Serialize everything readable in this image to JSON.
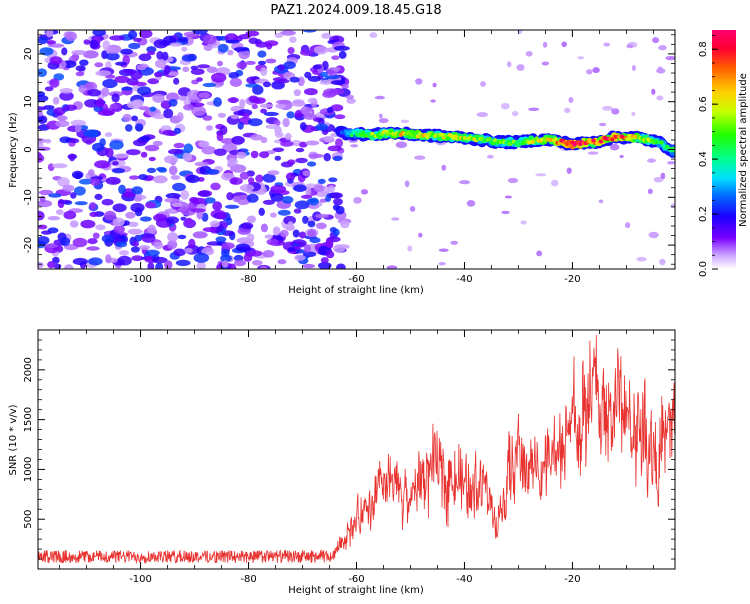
{
  "title": "PAZ1.2024.009.18.45.G18",
  "chart_data": [
    {
      "type": "heatmap",
      "xlabel": "Height of straight line (km)",
      "ylabel": "Frequency (Hz)",
      "xlim": [
        -119,
        -1
      ],
      "ylim": [
        -25,
        25
      ],
      "xticks": [
        -100,
        -80,
        -60,
        -40,
        -20
      ],
      "yticks": [
        -20,
        -10,
        0,
        10,
        20
      ],
      "colorbar": {
        "label": "Normalized spectral amplitude",
        "range": [
          0.0,
          0.87
        ],
        "ticks": [
          0.0,
          0.2,
          0.4,
          0.6,
          0.8
        ],
        "colormap": "gist_rainbow_r"
      },
      "ridge": {
        "description_height_km": [
          -63,
          -60,
          -57,
          -54,
          -50,
          -46,
          -42,
          -38,
          -34,
          -30,
          -27,
          -24,
          -20,
          -16,
          -12,
          -8,
          -4,
          -1
        ],
        "frequency_hz": [
          3.5,
          3.3,
          3.0,
          3.5,
          3.2,
          2.9,
          2.6,
          2.2,
          1.6,
          1.5,
          2.0,
          2.0,
          1.1,
          1.5,
          2.6,
          2.5,
          1.5,
          -0.5
        ],
        "amplitude": [
          0.25,
          0.45,
          0.55,
          0.6,
          0.62,
          0.6,
          0.58,
          0.55,
          0.5,
          0.5,
          0.6,
          0.62,
          0.85,
          0.75,
          0.8,
          0.6,
          0.45,
          0.4
        ]
      },
      "noise_region_km": [
        -119,
        -64
      ],
      "noise_amplitude": [
        0.05,
        0.25
      ]
    },
    {
      "type": "line",
      "xlabel": "Height of straight line (km)",
      "ylabel": "SNR (10 * v/v)",
      "xlim": [
        -119,
        -1
      ],
      "ylim": [
        0,
        2400
      ],
      "xticks": [
        -100,
        -80,
        -60,
        -40,
        -20
      ],
      "yticks": [
        500,
        1000,
        1500,
        2000
      ],
      "color": "#e8322f",
      "envelope": {
        "x": [
          -119,
          -66,
          -64,
          -62,
          -60,
          -58,
          -56,
          -54,
          -52,
          -50,
          -48,
          -46,
          -44,
          -42,
          -40,
          -38,
          -36,
          -34,
          -32,
          -30,
          -28,
          -26,
          -24,
          -22,
          -20,
          -18,
          -16,
          -14,
          -12,
          -10,
          -8,
          -6,
          -4,
          -2,
          -1
        ],
        "y": [
          120,
          130,
          200,
          350,
          500,
          560,
          750,
          850,
          780,
          700,
          900,
          1000,
          950,
          1000,
          800,
          900,
          850,
          400,
          900,
          1150,
          1000,
          1050,
          1100,
          1150,
          1500,
          1450,
          1800,
          1500,
          1700,
          1550,
          1400,
          1350,
          1100,
          1350,
          1600
        ]
      }
    }
  ]
}
